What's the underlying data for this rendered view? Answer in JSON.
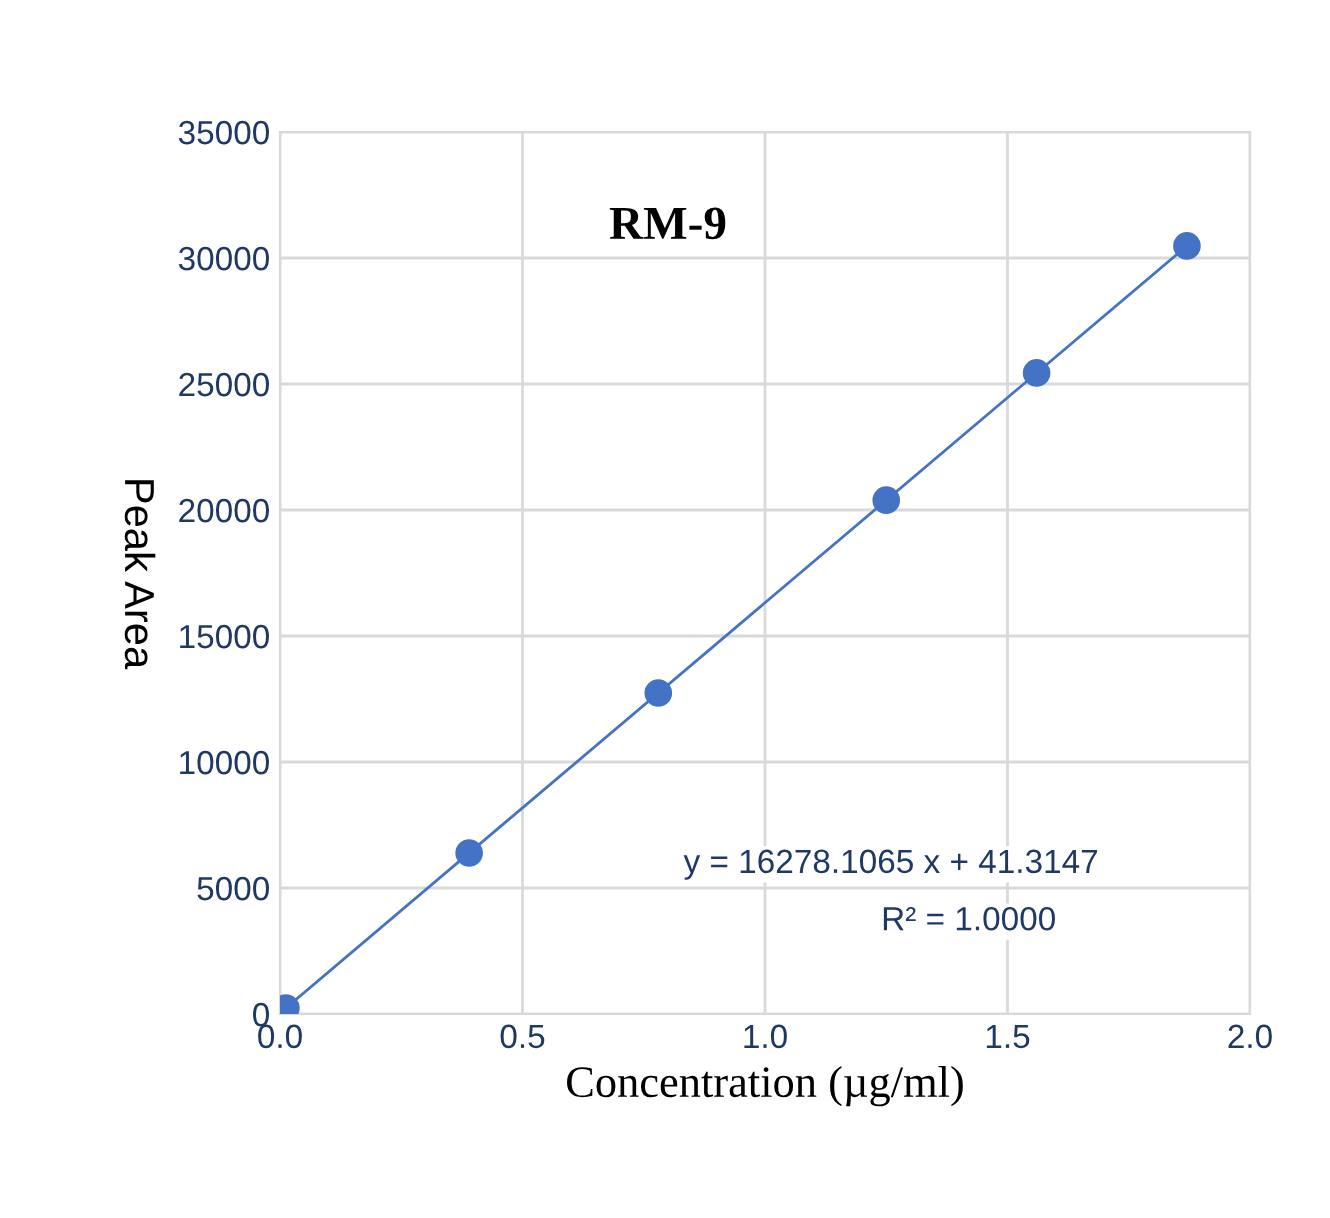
{
  "chart_data": {
    "type": "scatter",
    "title": "RM-9",
    "xlabel": "Concentration (µg/ml)",
    "ylabel": "Peak Area",
    "x": [
      0.0122,
      0.39,
      0.78,
      1.25,
      1.56,
      1.87
    ],
    "series": [
      {
        "color": "#4472c4",
        "values": [
          240,
          6390,
          12740,
          20390,
          25440,
          30480
        ],
        "marker": "circle"
      },
      {
        "type": "line",
        "color": "#4472c4",
        "x": [
          0.0122,
          1.87
        ],
        "values": [
          240,
          30480
        ],
        "line_style": "solid"
      }
    ],
    "xlim": [
      0,
      2
    ],
    "xticks": [
      {
        "value": 0,
        "label": "0.0"
      },
      {
        "value": 0.5,
        "label": "0.5"
      },
      {
        "value": 1,
        "label": "1.0"
      },
      {
        "value": 1.5,
        "label": "1.5"
      },
      {
        "value": 2,
        "label": "2.0"
      }
    ],
    "ylim": [
      0,
      35000
    ],
    "yticks": [
      0,
      5000,
      10000,
      15000,
      20000,
      25000,
      30000,
      35000
    ],
    "grid": true,
    "legend": false,
    "annotations": [
      "y = 16278.1065 x + 41.3147",
      "R² = 1.0000"
    ]
  }
}
